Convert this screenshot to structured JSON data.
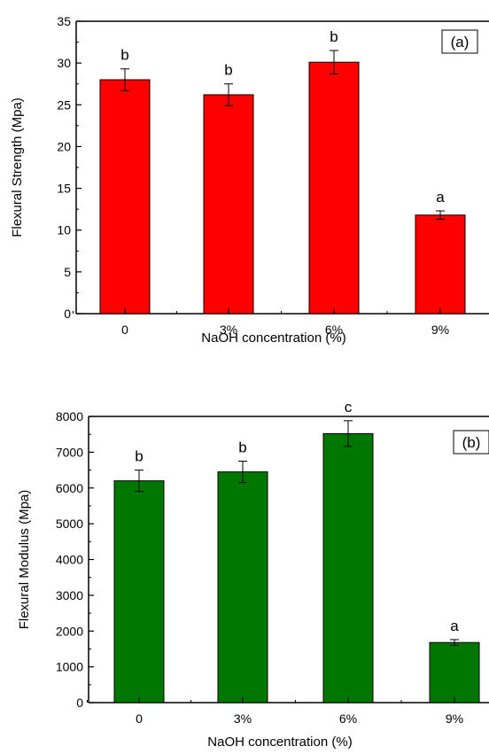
{
  "chart_data": [
    {
      "type": "bar",
      "panel_label": "(a)",
      "categories": [
        "0",
        "3%",
        "6%",
        "9%"
      ],
      "values": [
        28.0,
        26.2,
        30.1,
        11.8
      ],
      "errors": [
        1.3,
        1.3,
        1.4,
        0.5
      ],
      "significance": [
        "b",
        "b",
        "b",
        "a"
      ],
      "xlabel": "NaOH concentration (%)",
      "ylabel": "Flexural Strength (Mpa)",
      "ylim": [
        0,
        35
      ],
      "yticks": [
        "0",
        "5",
        "10",
        "15",
        "20",
        "25",
        "30",
        "35"
      ],
      "bar_color": "#ff0000",
      "grid": false
    },
    {
      "type": "bar",
      "panel_label": "(b)",
      "categories": [
        "0",
        "3%",
        "6%",
        "9%"
      ],
      "values": [
        6200,
        6450,
        7520,
        1680
      ],
      "errors": [
        300,
        300,
        360,
        80
      ],
      "significance": [
        "b",
        "b",
        "c",
        "a"
      ],
      "xlabel": "NaOH concentration (%)",
      "ylabel": "Flexural Modulus (Mpa)",
      "ylim": [
        0,
        8000
      ],
      "yticks": [
        "0",
        "1000",
        "2000",
        "3000",
        "4000",
        "5000",
        "6000",
        "7000",
        "8000"
      ],
      "bar_color": "#007700",
      "grid": false
    }
  ]
}
